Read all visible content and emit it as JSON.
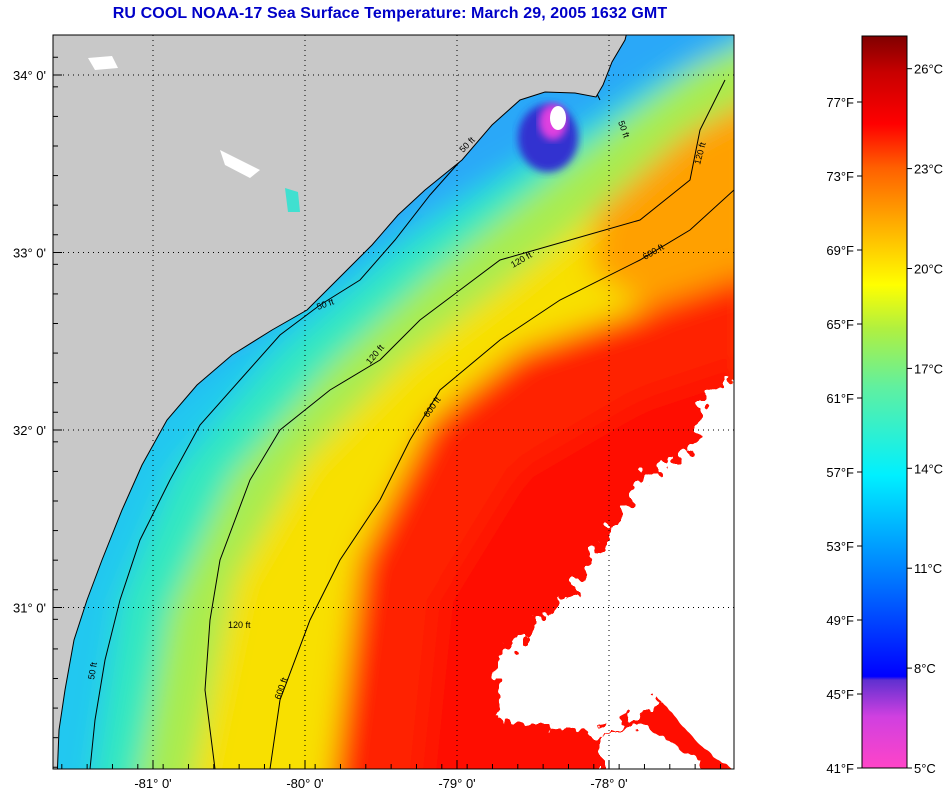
{
  "title": "RU COOL  NOAA-17  Sea Surface Temperature:  March 29, 2005 1632 GMT",
  "map": {
    "lon_ticks": [
      {
        "value": -81,
        "label": "-81° 0'"
      },
      {
        "value": -80,
        "label": "-80° 0'"
      },
      {
        "value": -79,
        "label": "-79° 0'"
      },
      {
        "value": -78,
        "label": "-78° 0'"
      }
    ],
    "lat_ticks": [
      {
        "value": 34,
        "label": "34° 0'"
      },
      {
        "value": 33,
        "label": "33° 0'"
      },
      {
        "value": 32,
        "label": "32° 0'"
      },
      {
        "value": 31,
        "label": "31° 0'"
      }
    ],
    "contour_labels": [
      "50 ft",
      "120 ft",
      "600 ft"
    ],
    "colors": {
      "land": "#c8c8c8",
      "cloud": "#ffffff",
      "title": "#0000c8"
    }
  },
  "colorbar": {
    "fahrenheit": [
      {
        "value": 77,
        "label": "77°F"
      },
      {
        "value": 73,
        "label": "73°F"
      },
      {
        "value": 69,
        "label": "69°F"
      },
      {
        "value": 65,
        "label": "65°F"
      },
      {
        "value": 61,
        "label": "61°F"
      },
      {
        "value": 57,
        "label": "57°F"
      },
      {
        "value": 53,
        "label": "53°F"
      },
      {
        "value": 49,
        "label": "49°F"
      },
      {
        "value": 45,
        "label": "45°F"
      },
      {
        "value": 41,
        "label": "41°F"
      }
    ],
    "celsius": [
      {
        "value": 26,
        "label": "26°C"
      },
      {
        "value": 23,
        "label": "23°C"
      },
      {
        "value": 20,
        "label": "20°C"
      },
      {
        "value": 17,
        "label": "17°C"
      },
      {
        "value": 14,
        "label": "14°C"
      },
      {
        "value": 11,
        "label": "11°C"
      },
      {
        "value": 8,
        "label": "8°C"
      },
      {
        "value": 5,
        "label": "5°C"
      }
    ],
    "range_c": [
      5,
      27
    ]
  }
}
